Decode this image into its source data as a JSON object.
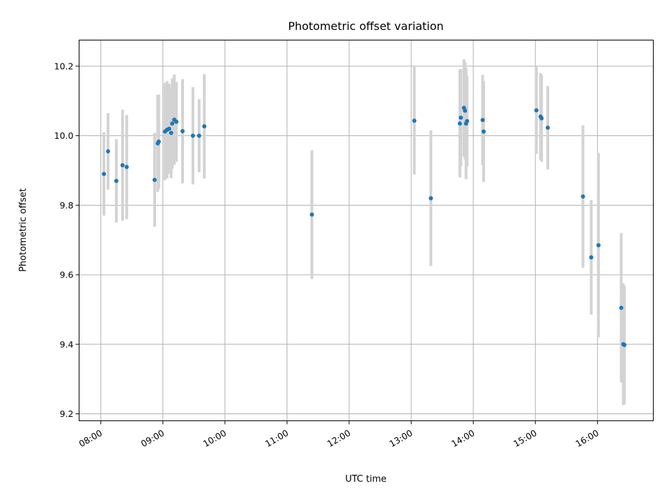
{
  "chart_data": {
    "type": "scatter",
    "title": "Photometric offset variation",
    "xlabel": "UTC time",
    "ylabel": "Photometric offset",
    "x_unit": "time (HH:MM UTC)",
    "xlim": [
      "07:39",
      "16:54"
    ],
    "ylim": [
      9.18,
      10.275
    ],
    "grid": true,
    "x_ticks": [
      "08:00",
      "09:00",
      "10:00",
      "11:00",
      "12:00",
      "13:00",
      "14:00",
      "15:00",
      "16:00"
    ],
    "y_ticks": [
      9.2,
      9.4,
      9.6,
      9.8,
      10.0,
      10.2
    ],
    "y_tick_labels": [
      "9.2",
      "9.4",
      "9.6",
      "9.8",
      "10.0",
      "10.2"
    ],
    "colors": {
      "point": "#1f77b4",
      "errorbar": "#d3d3d3",
      "grid": "#b0b0b0"
    },
    "points": [
      {
        "t": "08:03",
        "y": 9.89,
        "err": 0.12
      },
      {
        "t": "08:07",
        "y": 9.955,
        "err": 0.11
      },
      {
        "t": "08:15",
        "y": 9.87,
        "err": 0.12
      },
      {
        "t": "08:21",
        "y": 9.915,
        "err": 0.16
      },
      {
        "t": "08:25",
        "y": 9.91,
        "err": 0.15
      },
      {
        "t": "08:52",
        "y": 9.873,
        "err": 0.135
      },
      {
        "t": "08:55",
        "y": 9.978,
        "err": 0.14
      },
      {
        "t": "08:56",
        "y": 9.983,
        "err": 0.135
      },
      {
        "t": "09:02",
        "y": 10.012,
        "err": 0.14
      },
      {
        "t": "09:04",
        "y": 10.017,
        "err": 0.14
      },
      {
        "t": "09:06",
        "y": 10.02,
        "err": 0.13
      },
      {
        "t": "09:08",
        "y": 10.008,
        "err": 0.13
      },
      {
        "t": "09:09",
        "y": 10.035,
        "err": 0.13
      },
      {
        "t": "09:11",
        "y": 10.046,
        "err": 0.13
      },
      {
        "t": "09:13",
        "y": 10.04,
        "err": 0.115
      },
      {
        "t": "09:19",
        "y": 10.013,
        "err": 0.15
      },
      {
        "t": "09:29",
        "y": 10.0,
        "err": 0.14
      },
      {
        "t": "09:35",
        "y": 10.0,
        "err": 0.105
      },
      {
        "t": "09:40",
        "y": 10.027,
        "err": 0.15
      },
      {
        "t": "11:24",
        "y": 9.773,
        "err": 0.185
      },
      {
        "t": "13:03",
        "y": 10.043,
        "err": 0.155
      },
      {
        "t": "13:19",
        "y": 9.82,
        "err": 0.195
      },
      {
        "t": "13:47",
        "y": 10.035,
        "err": 0.155
      },
      {
        "t": "13:48",
        "y": 10.052,
        "err": 0.14
      },
      {
        "t": "13:51",
        "y": 10.08,
        "err": 0.14
      },
      {
        "t": "13:52",
        "y": 10.072,
        "err": 0.14
      },
      {
        "t": "13:53",
        "y": 10.035,
        "err": 0.16
      },
      {
        "t": "13:54",
        "y": 10.042,
        "err": 0.13
      },
      {
        "t": "14:09",
        "y": 10.045,
        "err": 0.13
      },
      {
        "t": "14:10",
        "y": 10.012,
        "err": 0.145
      },
      {
        "t": "15:01",
        "y": 10.073,
        "err": 0.125
      },
      {
        "t": "15:05",
        "y": 10.055,
        "err": 0.125
      },
      {
        "t": "15:06",
        "y": 10.05,
        "err": 0.125
      },
      {
        "t": "15:12",
        "y": 10.023,
        "err": 0.12
      },
      {
        "t": "15:46",
        "y": 9.825,
        "err": 0.205
      },
      {
        "t": "15:54",
        "y": 9.65,
        "err": 0.165
      },
      {
        "t": "16:01",
        "y": 9.685,
        "err": 0.265
      },
      {
        "t": "16:23",
        "y": 9.505,
        "err": 0.215
      },
      {
        "t": "16:25",
        "y": 9.4,
        "err": 0.175
      },
      {
        "t": "16:26",
        "y": 9.398,
        "err": 0.17
      }
    ]
  }
}
